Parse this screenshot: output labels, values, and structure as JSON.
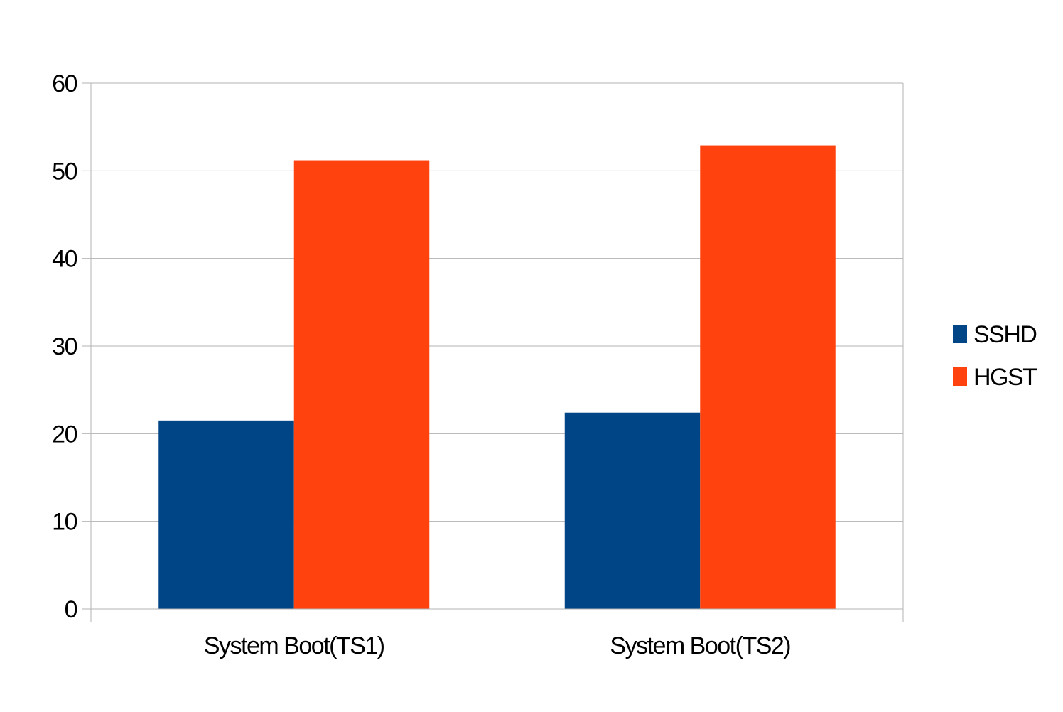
{
  "chart_data": {
    "type": "bar",
    "title": "",
    "xlabel": "",
    "ylabel": "",
    "categories": [
      "System Boot(TS1)",
      "System Boot(TS2)"
    ],
    "series": [
      {
        "name": "SSHD",
        "color": "#004586",
        "values": [
          21.5,
          22.4
        ]
      },
      {
        "name": "HGST",
        "color": "#ff420e",
        "values": [
          51.2,
          52.9
        ]
      }
    ],
    "ylim": [
      0,
      60
    ],
    "yticks": [
      "0",
      "10",
      "20",
      "30",
      "40",
      "50",
      "60"
    ],
    "grid": true,
    "legend_position": "right"
  },
  "colors": {
    "grid": "#b3b3b3",
    "axis": "#b3b3b3"
  }
}
